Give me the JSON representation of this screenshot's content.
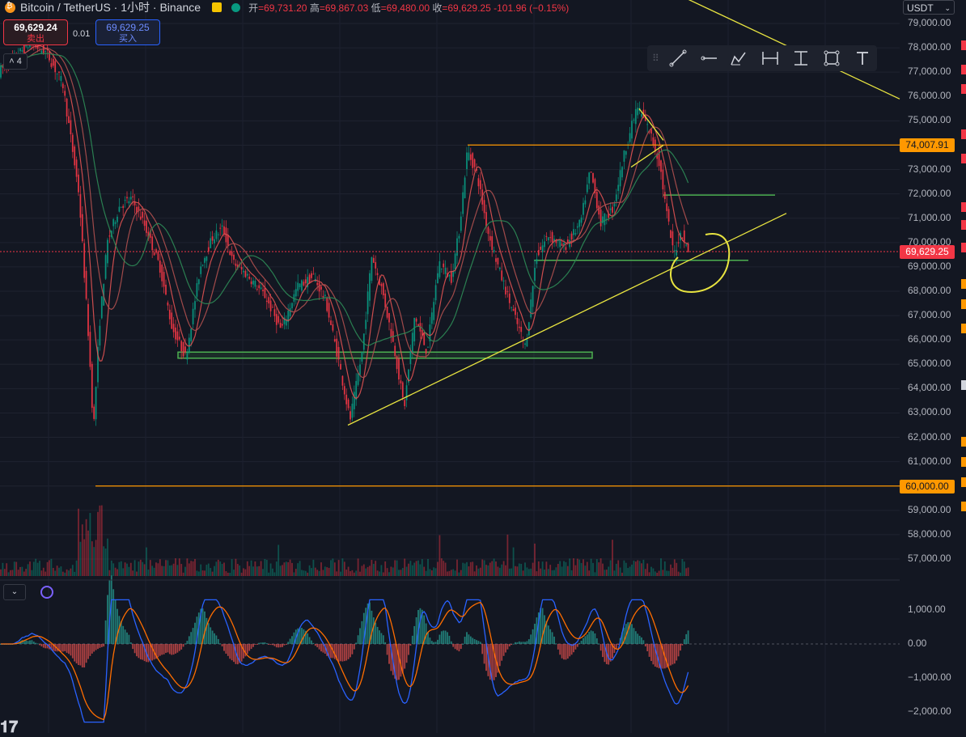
{
  "header": {
    "title": "Bitcoin / TetherUS · 1小时 · Binance",
    "ohlc": [
      {
        "k": "开",
        "v": "=69,731.20"
      },
      {
        "k": "高",
        "v": "=69,867.03"
      },
      {
        "k": "低",
        "v": "=69,480.00"
      },
      {
        "k": "收",
        "v": "=69,629.25"
      }
    ],
    "change": "-101.96 (−0.15%)"
  },
  "trade": {
    "sell_price": "69,629.24",
    "sell_label": "卖出",
    "spread": "0.01",
    "buy_price": "69,629.25",
    "buy_label": "买入",
    "indicator_count": "4"
  },
  "currency": "USDT",
  "colors": {
    "up": "#089981",
    "down": "#f23645",
    "level": "#ff9800",
    "trend": "#e8e440",
    "zone": "#4caf50",
    "macd": "#2962ff",
    "signal": "#ff6d00"
  },
  "toolbar_icons": [
    "trend-line-icon",
    "horizontal-ray-icon",
    "brush-icon",
    "date-range-icon",
    "price-range-icon",
    "rectangle-icon",
    "text-icon"
  ],
  "chart_data": {
    "type": "candlestick",
    "ylim": [
      56500,
      79800
    ],
    "yticks": [
      "79,000.00",
      "78,000.00",
      "77,000.00",
      "76,000.00",
      "75,000.00",
      "74,000.00",
      "73,000.00",
      "72,000.00",
      "71,000.00",
      "70,000.00",
      "69,000.00",
      "68,000.00",
      "67,000.00",
      "66,000.00",
      "65,000.00",
      "64,000.00",
      "63,000.00",
      "62,000.00",
      "61,000.00",
      "60,000.00",
      "59,000.00",
      "58,000.00",
      "57,000.00"
    ],
    "path": [
      [
        0,
        77000
      ],
      [
        40,
        78200
      ],
      [
        60,
        77800
      ],
      [
        80,
        76500
      ],
      [
        100,
        72000
      ],
      [
        112,
        66000
      ],
      [
        118,
        62300
      ],
      [
        125,
        66500
      ],
      [
        135,
        70000
      ],
      [
        150,
        71500
      ],
      [
        165,
        71800
      ],
      [
        180,
        70800
      ],
      [
        200,
        69000
      ],
      [
        215,
        66500
      ],
      [
        232,
        65300
      ],
      [
        250,
        69000
      ],
      [
        265,
        70200
      ],
      [
        278,
        70600
      ],
      [
        290,
        69200
      ],
      [
        310,
        68600
      ],
      [
        330,
        67800
      ],
      [
        350,
        66400
      ],
      [
        370,
        68200
      ],
      [
        390,
        68600
      ],
      [
        405,
        67600
      ],
      [
        420,
        65300
      ],
      [
        435,
        62700
      ],
      [
        450,
        65500
      ],
      [
        462,
        69500
      ],
      [
        475,
        68000
      ],
      [
        490,
        65600
      ],
      [
        502,
        63200
      ],
      [
        515,
        67000
      ],
      [
        530,
        65500
      ],
      [
        545,
        69200
      ],
      [
        560,
        68500
      ],
      [
        570,
        70500
      ],
      [
        580,
        73800
      ],
      [
        592,
        72800
      ],
      [
        605,
        70500
      ],
      [
        620,
        68800
      ],
      [
        640,
        66800
      ],
      [
        652,
        65700
      ],
      [
        665,
        69400
      ],
      [
        680,
        70300
      ],
      [
        700,
        69800
      ],
      [
        720,
        70800
      ],
      [
        732,
        73000
      ],
      [
        745,
        70800
      ],
      [
        760,
        71400
      ],
      [
        775,
        73800
      ],
      [
        790,
        75600
      ],
      [
        805,
        74600
      ],
      [
        818,
        73200
      ],
      [
        825,
        71500
      ],
      [
        835,
        69500
      ],
      [
        845,
        70500
      ],
      [
        852,
        69629
      ]
    ],
    "price_levels": [
      {
        "price": 74007.91,
        "label": "74,007.91",
        "x_start": 578
      },
      {
        "price": 60000,
        "label": "60,000.00",
        "x_start": 118
      }
    ],
    "last_price": {
      "value": 69629.25,
      "label": "69,629.25"
    },
    "trend_lines": [
      {
        "from": [
          430,
          62500
        ],
        "to": [
          972,
          71200
        ]
      },
      {
        "from": [
          850,
          80000
        ],
        "to": [
          1112,
          75900
        ]
      },
      {
        "from": [
          790,
          75500
        ],
        "to": [
          820,
          74200
        ]
      },
      {
        "from": [
          780,
          73100
        ],
        "to": [
          820,
          74000
        ]
      }
    ],
    "zones": [
      {
        "price_top": 65500,
        "price_bottom": 65250,
        "x_start": 220,
        "x_end": 732
      },
      {
        "price": 71950,
        "x_start": 820,
        "x_end": 958
      },
      {
        "price": 69270,
        "x_start": 660,
        "x_end": 925
      }
    ],
    "macd": {
      "yticks": [
        "1,000.00",
        "0.00",
        "−1,000.00",
        "−2,000.00"
      ],
      "ylim": [
        -2500,
        1400
      ]
    }
  }
}
